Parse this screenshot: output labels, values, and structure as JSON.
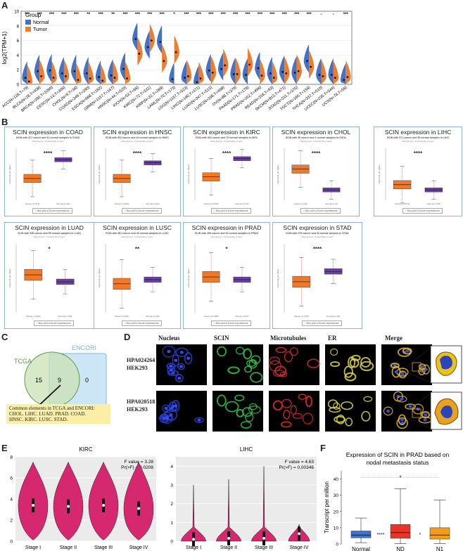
{
  "panels": {
    "a": "A",
    "b": "B",
    "c": "C",
    "d": "D",
    "e": "E",
    "f": "F"
  },
  "colors": {
    "normal": "#4472c4",
    "tumor": "#ed7d31",
    "violin": "#d6286e",
    "venn_tcga": "#c9e2b3",
    "venn_encori": "#cde6f5",
    "note_bg": "#fbeea6",
    "box_orange": "#f07828",
    "box_purple": "#6a3fa8"
  },
  "chart_data": [
    {
      "id": "A",
      "type": "violin",
      "ylabel": "log2(TPM+1)",
      "ylim": [
        0,
        10
      ],
      "yticks": [
        "0",
        "2",
        "4",
        "6",
        "8",
        "10"
      ],
      "legend_title": "Group",
      "legend": [
        "Normal",
        "Tumor"
      ],
      "categories": [
        "ACC(N=128,T=79)",
        "BLCA(N=28,T=408)",
        "BRCA(N=292,T=1099)",
        "CESC(N=13,T=306)",
        "CHOL(N=9,T=36)",
        "COAD(N=349,T=290)",
        "ESCA(N=668,T=182)",
        "GBM(N=1157,T=167)",
        "HNSC(N=44,T=520)",
        "KICH(N=53,T=66)",
        "KIRC(N=72,T=531)",
        "KIRP(N=32,T=289)",
        "LAML(N=70,T=173)",
        "LGG(N=1157,T=523)",
        "LIHC(N=160,T=371)",
        "LUAD(N=347,T=515)",
        "LUSC(N=338,T=498)",
        "OV(N=88,T=379)",
        "PAAD(N=171,T=178)",
        "PRAD(N=152,T=496)",
        "READ(N=318,T=93)",
        "SKCM(N=813,T=471)",
        "STAD(N=211,T=375)",
        "TGCT(N=165,T=156)",
        "THCA(N=337,T=510)",
        "UCEC(N=235,T=544)",
        "UCS(N=78,T=56)"
      ],
      "significance": [
        "***",
        "***",
        "***",
        "***",
        "***",
        "**",
        "***",
        "**",
        "***",
        "***",
        "***",
        "***",
        "*",
        "***",
        "***",
        "***",
        "***",
        "***",
        "***",
        "***",
        "***",
        "***",
        "***",
        "***",
        "-",
        "-",
        "***"
      ],
      "normal_median": [
        0.9,
        1.8,
        1.9,
        1.5,
        1.8,
        1.5,
        1.0,
        1.2,
        2.1,
        6.2,
        5.1,
        5.8,
        0.7,
        0.9,
        0.3,
        1.9,
        2.1,
        1.4,
        1.3,
        2.2,
        1.5,
        1.7,
        1.6,
        3.2,
        1.3,
        1.3,
        0.6
      ],
      "tumor_median": [
        0.4,
        1.1,
        0.9,
        1.1,
        0.6,
        0.8,
        0.5,
        0.9,
        0.8,
        4.2,
        6.0,
        3.2,
        4.4,
        1.1,
        0.8,
        1.6,
        2.6,
        1.4,
        2.7,
        1.2,
        0.9,
        1.5,
        1.8,
        2.4,
        1.1,
        0.9,
        1.0
      ]
    },
    {
      "id": "B",
      "type": "box",
      "ylabel": "Transcript per million",
      "categories": [
        "Tumor",
        "Normal"
      ],
      "legend": [
        "Box plot",
        "Score expressions"
      ],
      "plots": [
        {
          "title": "SCIN expression in COAD",
          "subtitle": "SCIN with 471 cancer and 41 normal samples in COAD",
          "source": "Data Source: TCGA/GTEx project",
          "stars": "****",
          "tumor_median": 0.42,
          "normal_median": 0.78,
          "x_labels": [
            "Cancer (n=471)",
            "Normal (n=41)"
          ]
        },
        {
          "title": "SCIN expression in HNSC",
          "subtitle": "SCIN with 502 cancer and 44 normal samples in HNSC",
          "source": "Data Source: TCGA/GTEx project",
          "stars": "****",
          "tumor_median": 0.42,
          "normal_median": 0.72,
          "x_labels": [
            "Cancer (n=502)",
            "Normal (n=44)"
          ]
        },
        {
          "title": "SCIN expression in KIRC",
          "subtitle": "SCIN with 533 cancer and 72 normal samples in KIRC",
          "source": "Data Source: TCGA/GTEx project",
          "stars": "****",
          "tumor_median": 0.45,
          "normal_median": 0.8,
          "x_labels": [
            "Cancer (n=533)",
            "Normal (n=72)"
          ]
        },
        {
          "title": "SCIN expression in CHOL",
          "subtitle": "SCIN with 36 cancer and 9 normal samples in CHOL",
          "source": "Data Source: TCGA/GTEx project",
          "stars": "****",
          "tumor_median": 0.6,
          "normal_median": 0.2,
          "x_labels": [
            "Cancer (n=36)",
            "Normal (n=9)"
          ]
        },
        {
          "title": "SCIN expression in LIHC",
          "subtitle": "SCIN with 371 cancer and 50 normal samples in LIHC",
          "source": "Data Source: TCGA/GTEx project",
          "stars": "****",
          "tumor_median": 0.3,
          "normal_median": 0.2,
          "x_labels": [
            "Cancer (n=371)",
            "Normal (n=50)"
          ]
        },
        {
          "title": "SCIN expression in LUAD",
          "subtitle": "SCIN with 526 cancer and 59 normal samples in LUAD",
          "source": "Data Source: TCGA/GTEx project",
          "stars": "*",
          "tumor_median": 0.55,
          "normal_median": 0.45,
          "x_labels": [
            "Cancer (n=526)",
            "Normal (n=59)"
          ]
        },
        {
          "title": "SCIN expression in LUSC",
          "subtitle": "SCIN with 501 cancer and 49 normal samples in LUSC",
          "source": "Data Source: TCGA/GTEx project",
          "stars": "**",
          "tumor_median": 0.42,
          "normal_median": 0.48,
          "x_labels": [
            "Cancer (n=501)",
            "Normal (n=49)"
          ]
        },
        {
          "title": "SCIN expression in PRAD",
          "subtitle": "SCIN with 499 cancer and 52 normal samples in PRAD",
          "source": "Data Source: TCGA/GTEx project",
          "stars": "*",
          "tumor_median": 0.52,
          "normal_median": 0.48,
          "x_labels": [
            "Cancer (n=499)",
            "Normal (n=52)"
          ]
        },
        {
          "title": "SCIN expression in STAD",
          "subtitle": "SCIN with 375 cancer and 34 normal samples in STAD",
          "source": "Data Source: TCGA/GTEx project",
          "stars": "****",
          "tumor_median": 0.45,
          "normal_median": 0.6,
          "x_labels": [
            "Cancer (n=375)",
            "Normal (n=34)"
          ]
        }
      ]
    },
    {
      "id": "E",
      "type": "violin",
      "plots": [
        {
          "title": "KIRC",
          "f_text": "F value = 3.28",
          "p_text": "Pr(>F) = 0.0208",
          "ylim": [
            0,
            8
          ],
          "yticks": [
            "0",
            "2",
            "4",
            "6",
            "8"
          ],
          "categories": [
            "Stage I",
            "Stage II",
            "Stage III",
            "Stage IV"
          ],
          "medians": [
            3.4,
            3.3,
            3.4,
            3.1
          ]
        },
        {
          "title": "LIHC",
          "f_text": "F value = 4.63",
          "p_text": "Pr(>F) = 0.00346",
          "ylim": [
            0,
            4.5
          ],
          "yticks": [
            "0",
            "1",
            "2",
            "3",
            "4"
          ],
          "categories": [
            "Stage I",
            "Stage II",
            "Stage III",
            "Stage IV"
          ],
          "medians": [
            0.1,
            0.15,
            0.15,
            0.4
          ]
        }
      ]
    },
    {
      "id": "F",
      "type": "box",
      "title_line1": "Expression of SCIN in PRAD based on",
      "title_line2": "nodal metastasis status",
      "ylabel": "Transcript per million",
      "ylim": [
        0,
        45
      ],
      "yticks": [
        "0",
        "10",
        "20",
        "30",
        "40"
      ],
      "categories": [
        "Normal",
        "ND",
        "N1"
      ],
      "medians": [
        5.5,
        7,
        5.5
      ],
      "q1": [
        3.8,
        3.5,
        3
      ],
      "q3": [
        8,
        12,
        10
      ],
      "whisker_low": [
        0.8,
        0.2,
        0.2
      ],
      "whisker_high": [
        16,
        34,
        27
      ],
      "colors": [
        "#4472c4",
        "#e8352a",
        "#f29b1d"
      ],
      "annotations": {
        "ns_stars": "****",
        "n1_star": "*",
        "bracket_star": "*"
      }
    }
  ],
  "venn": {
    "encori_label": "ENCORI",
    "tcga_label": "TCGA",
    "tcga_only": "15",
    "common": "9",
    "encori_only": "0",
    "note_line1": "Common elements in TCGA and ENCORI:",
    "note_line2": "CHOL. LIHC. LUAD. PRAD. COAD.",
    "note_line3": "HNSC. KIRC. LUSC. STAD."
  },
  "if_panel": {
    "headers": [
      "Nucleus",
      "SCIN",
      "Microtubules",
      "ER",
      "Merge"
    ],
    "rows": [
      {
        "line1": "HPA024264",
        "line2": "HEK293"
      },
      {
        "line1": "HPA020518",
        "line2": "HEK293"
      }
    ]
  }
}
